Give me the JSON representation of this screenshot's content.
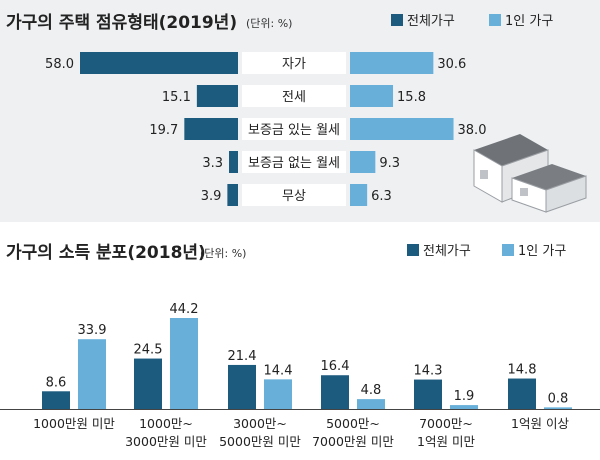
{
  "colors": {
    "dark": "#1c5a7e",
    "light": "#68b0da",
    "panel": "#eef0f2"
  },
  "chart_data": [
    {
      "type": "bar",
      "orientation": "horizontal-butterfly",
      "title": "가구의 주택 점유형태(2019년)",
      "unit": "(단위: %)",
      "legend_position": "top-right",
      "categories": [
        "자가",
        "전세",
        "보증금 있는 월세",
        "보증금 없는 월세",
        "무상"
      ],
      "series": [
        {
          "name": "전체가구",
          "values": [
            58.0,
            15.1,
            19.7,
            3.3,
            3.9
          ]
        },
        {
          "name": "1인 가구",
          "values": [
            30.6,
            15.8,
            38.0,
            9.3,
            6.3
          ]
        }
      ],
      "value_labels": [
        [
          "58.0",
          "15.1",
          "19.7",
          "3.3",
          "3.9"
        ],
        [
          "30.6",
          "15.8",
          "38.0",
          "9.3",
          "6.3"
        ]
      ],
      "xlim": [
        0,
        58
      ]
    },
    {
      "type": "bar",
      "title": "가구의 소득 분포(2018년)",
      "unit": "(단위: %)",
      "legend_position": "top-right",
      "categories": [
        [
          "1000만원 미만"
        ],
        [
          "1000만~",
          "3000만원 미만"
        ],
        [
          "3000만~",
          "5000만원 미만"
        ],
        [
          "5000만~",
          "7000만원 미만"
        ],
        [
          "7000만~",
          "1억원 미만"
        ],
        [
          "1억원 이상"
        ]
      ],
      "series": [
        {
          "name": "전체가구",
          "values": [
            8.6,
            24.5,
            21.4,
            16.4,
            14.3,
            14.8
          ]
        },
        {
          "name": "1인 가구",
          "values": [
            33.9,
            44.2,
            14.4,
            4.8,
            1.9,
            0.8
          ]
        }
      ],
      "value_labels": [
        [
          "8.6",
          "24.5",
          "21.4",
          "16.4",
          "14.3",
          "14.8"
        ],
        [
          "33.9",
          "44.2",
          "14.4",
          "4.8",
          "1.9",
          "0.8"
        ]
      ],
      "ylim": [
        0,
        44.2
      ]
    }
  ]
}
